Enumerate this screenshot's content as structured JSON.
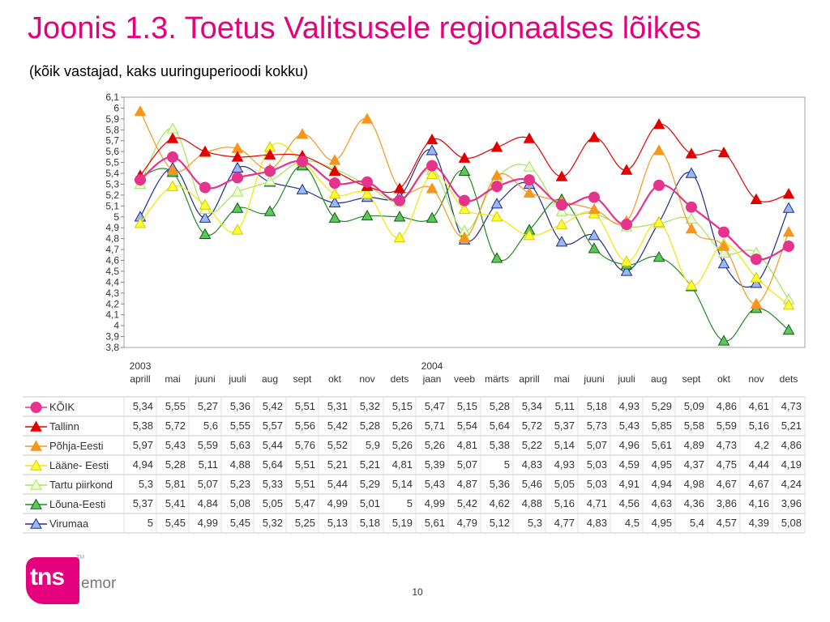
{
  "title": "Joonis 1.3. Toetus Valitsusele regionaalses lõikes",
  "subtitle": "(kõik vastajad, kaks uuringuperioodi kokku)",
  "page_number": "10",
  "logo": {
    "tns": "tns",
    "emor": "emor",
    "tm": "TM"
  },
  "chart_data": {
    "type": "line",
    "title": "",
    "xlabel": "",
    "ylabel": "",
    "ylim": [
      3.8,
      6.1
    ],
    "yticks": [
      "6,1",
      "6",
      "5,9",
      "5,8",
      "5,7",
      "5,6",
      "5,5",
      "5,4",
      "5,3",
      "5,2",
      "5,1",
      "5",
      "4,9",
      "4,8",
      "4,7",
      "4,6",
      "4,5",
      "4,4",
      "4,3",
      "4,2",
      "4,1",
      "4",
      "3,9",
      "3,8"
    ],
    "grid": false,
    "legend_placement": "bottom-table",
    "years": [
      {
        "label": "2003",
        "index": 0
      },
      {
        "label": "2004",
        "index": 9
      }
    ],
    "categories": [
      "aprill",
      "mai",
      "juuni",
      "juuli",
      "aug",
      "sept",
      "okt",
      "nov",
      "dets",
      "jaan",
      "veeb",
      "märts",
      "aprill",
      "mai",
      "juuni",
      "juuli",
      "aug",
      "sept",
      "okt",
      "nov",
      "dets"
    ],
    "series": [
      {
        "name": "KÕIK",
        "color": "#e6338c",
        "marker": "circle",
        "values": [
          5.34,
          5.55,
          5.27,
          5.36,
          5.42,
          5.51,
          5.31,
          5.32,
          5.15,
          5.47,
          5.15,
          5.28,
          5.34,
          5.11,
          5.18,
          4.93,
          5.29,
          5.09,
          4.86,
          4.61,
          4.73
        ],
        "labels": [
          "5,34",
          "5,55",
          "5,27",
          "5,36",
          "5,42",
          "5,51",
          "5,31",
          "5,32",
          "5,15",
          "5,47",
          "5,15",
          "5,28",
          "5,34",
          "5,11",
          "5,18",
          "4,93",
          "5,29",
          "5,09",
          "4,86",
          "4,61",
          "4,73"
        ]
      },
      {
        "name": "Tallinn",
        "color": "#e00000",
        "marker": "triangle",
        "values": [
          5.38,
          5.72,
          5.6,
          5.55,
          5.57,
          5.56,
          5.42,
          5.28,
          5.26,
          5.71,
          5.54,
          5.64,
          5.72,
          5.37,
          5.73,
          5.43,
          5.85,
          5.58,
          5.59,
          5.16,
          5.21
        ],
        "labels": [
          "5,38",
          "5,72",
          "5,6",
          "5,55",
          "5,57",
          "5,56",
          "5,42",
          "5,28",
          "5,26",
          "5,71",
          "5,54",
          "5,64",
          "5,72",
          "5,37",
          "5,73",
          "5,43",
          "5,85",
          "5,58",
          "5,59",
          "5,16",
          "5,21"
        ]
      },
      {
        "name": "Põhja-Eesti",
        "color": "#f5961e",
        "marker": "triangle",
        "values": [
          5.97,
          5.43,
          5.59,
          5.63,
          5.44,
          5.76,
          5.52,
          5.9,
          5.26,
          5.26,
          4.81,
          5.38,
          5.22,
          5.14,
          5.07,
          4.96,
          5.61,
          4.89,
          4.73,
          4.2,
          4.86
        ],
        "labels": [
          "5,97",
          "5,43",
          "5,59",
          "5,63",
          "5,44",
          "5,76",
          "5,52",
          "5,9",
          "5,26",
          "5,26",
          "4,81",
          "5,38",
          "5,22",
          "5,14",
          "5,07",
          "4,96",
          "5,61",
          "4,89",
          "4,73",
          "4,2",
          "4,86"
        ]
      },
      {
        "name": "Lääne- Eesti",
        "color": "#f5e600",
        "marker": "triangle",
        "values": [
          4.94,
          5.28,
          5.11,
          4.88,
          5.64,
          5.51,
          5.21,
          5.21,
          4.81,
          5.39,
          5.07,
          5,
          4.83,
          4.93,
          5.03,
          4.59,
          4.95,
          4.37,
          4.75,
          4.44,
          4.19
        ],
        "labels": [
          "4,94",
          "5,28",
          "5,11",
          "4,88",
          "5,64",
          "5,51",
          "5,21",
          "5,21",
          "4,81",
          "5,39",
          "5,07",
          "5",
          "4,83",
          "4,93",
          "5,03",
          "4,59",
          "4,95",
          "4,37",
          "4,75",
          "4,44",
          "4,19"
        ]
      },
      {
        "name": "Tartu piirkond",
        "color": "#a6e35a",
        "marker": "triangle-open",
        "values": [
          5.3,
          5.81,
          5.07,
          5.23,
          5.33,
          5.51,
          5.44,
          5.29,
          5.14,
          5.43,
          4.87,
          5.36,
          5.46,
          5.05,
          5.03,
          4.91,
          4.94,
          4.98,
          4.67,
          4.67,
          4.24
        ],
        "labels": [
          "5,3",
          "5,81",
          "5,07",
          "5,23",
          "5,33",
          "5,51",
          "5,44",
          "5,29",
          "5,14",
          "5,43",
          "4,87",
          "5,36",
          "5,46",
          "5,05",
          "5,03",
          "4,91",
          "4,94",
          "4,98",
          "4,67",
          "4,67",
          "4,24"
        ]
      },
      {
        "name": "Lõuna-Eesti",
        "color": "#1e8c1e",
        "marker": "triangle",
        "values": [
          5.37,
          5.41,
          4.84,
          5.08,
          5.05,
          5.47,
          4.99,
          5.01,
          5,
          4.99,
          5.42,
          4.62,
          4.88,
          5.16,
          4.71,
          4.56,
          4.63,
          4.36,
          3.86,
          4.16,
          3.96
        ],
        "labels": [
          "5,37",
          "5,41",
          "4,84",
          "5,08",
          "5,05",
          "5,47",
          "4,99",
          "5,01",
          "5",
          "4,99",
          "5,42",
          "4,62",
          "4,88",
          "5,16",
          "4,71",
          "4,56",
          "4,63",
          "4,36",
          "3,86",
          "4,16",
          "3,96"
        ]
      },
      {
        "name": "Virumaa",
        "color": "#1e2d8c",
        "marker": "triangle-blue",
        "values": [
          5,
          5.45,
          4.99,
          5.45,
          5.32,
          5.25,
          5.13,
          5.18,
          5.19,
          5.61,
          4.79,
          5.12,
          5.3,
          4.77,
          4.83,
          4.5,
          4.95,
          5.4,
          4.57,
          4.39,
          5.08
        ],
        "labels": [
          "5",
          "5,45",
          "4,99",
          "5,45",
          "5,32",
          "5,25",
          "5,13",
          "5,18",
          "5,19",
          "5,61",
          "4,79",
          "5,12",
          "5,3",
          "4,77",
          "4,83",
          "4,5",
          "4,95",
          "5,4",
          "4,57",
          "4,39",
          "5,08"
        ]
      }
    ]
  }
}
